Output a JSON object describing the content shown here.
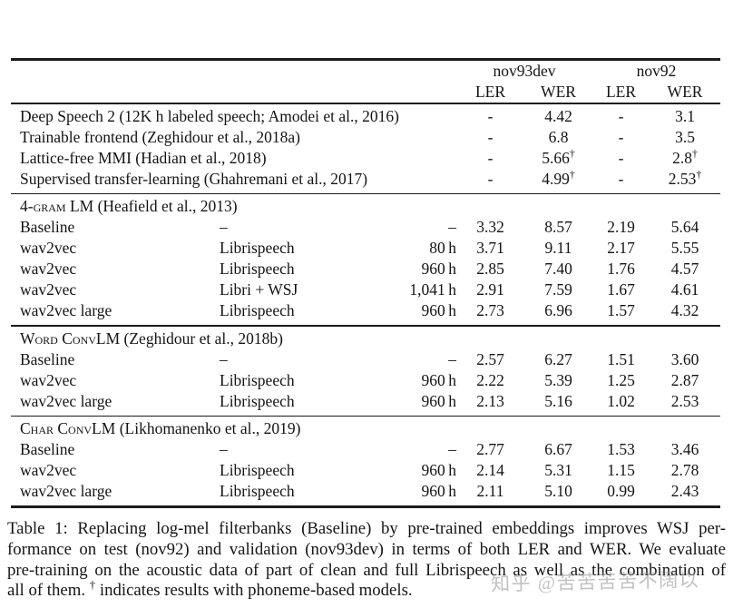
{
  "page": {
    "background": "#ffffff",
    "text_color": "#141414",
    "rule_color": "#1b1b1b"
  },
  "table": {
    "group_headers": [
      {
        "label": "nov93dev"
      },
      {
        "label": "nov92"
      }
    ],
    "column_headers": [
      "LER",
      "WER",
      "LER",
      "WER"
    ],
    "sections": [
      {
        "title_smallcaps": "",
        "title_rest": "",
        "rows": [
          [
            "Deep Speech 2 (12K h labeled speech; Amodei et al., 2016)",
            "",
            "",
            "-",
            "4.42",
            "-",
            "3.1"
          ],
          [
            "Trainable frontend (Zeghidour et al., 2018a)",
            "",
            "",
            "-",
            "6.8",
            "-",
            "3.5"
          ],
          [
            "Lattice-free MMI (Hadian et al., 2018)",
            "",
            "",
            "-",
            "5.66†",
            "-",
            "2.8†"
          ],
          [
            "Supervised transfer-learning (Ghahremani et al., 2017)",
            "",
            "",
            "-",
            "4.99†",
            "-",
            "2.53†"
          ]
        ]
      },
      {
        "title_smallcaps": "4-gram LM",
        "title_rest": " (Heafield et al., 2013)",
        "rows": [
          [
            "Baseline",
            "–",
            "–",
            "3.32",
            "8.57",
            "2.19",
            "5.64"
          ],
          [
            "wav2vec",
            "Librispeech",
            "80 h",
            "3.71",
            "9.11",
            "2.17",
            "5.55"
          ],
          [
            "wav2vec",
            "Librispeech",
            "960 h",
            "2.85",
            "7.40",
            "1.76",
            "4.57"
          ],
          [
            "wav2vec",
            "Libri + WSJ",
            "1,041 h",
            "2.91",
            "7.59",
            "1.67",
            "4.61"
          ],
          [
            "wav2vec large",
            "Librispeech",
            "960 h",
            "2.73",
            "6.96",
            "1.57",
            "4.32"
          ]
        ]
      },
      {
        "title_smallcaps": "Word ConvLM",
        "title_rest": " (Zeghidour et al., 2018b)",
        "rows": [
          [
            "Baseline",
            "–",
            "–",
            "2.57",
            "6.27",
            "1.51",
            "3.60"
          ],
          [
            "wav2vec",
            "Librispeech",
            "960 h",
            "2.22",
            "5.39",
            "1.25",
            "2.87"
          ],
          [
            "wav2vec large",
            "Librispeech",
            "960 h",
            "2.13",
            "5.16",
            "1.02",
            "2.53"
          ]
        ]
      },
      {
        "title_smallcaps": "Char ConvLM",
        "title_rest": " (Likhomanenko et al., 2019)",
        "rows": [
          [
            "Baseline",
            "–",
            "–",
            "2.77",
            "6.67",
            "1.53",
            "3.46"
          ],
          [
            "wav2vec",
            "Librispeech",
            "960 h",
            "2.14",
            "5.31",
            "1.15",
            "2.78"
          ],
          [
            "wav2vec large",
            "Librispeech",
            "960 h",
            "2.11",
            "5.10",
            "0.99",
            "2.43"
          ]
        ]
      }
    ]
  },
  "caption": {
    "lines": [
      "Table 1: Replacing log-mel filterbanks (Baseline) by pre-trained embeddings improves WSJ per-",
      "formance on test (nov92) and validation (nov93dev) in terms of both LER and WER. We evaluate",
      "pre-training on the acoustic data of part of clean and full Librispeech as well as the combination of",
      "all of them. † indicates results with phoneme-based models."
    ]
  },
  "watermark": {
    "text": "知乎 @苦苦苦苦不阔以",
    "color": "#8f8f8f"
  }
}
